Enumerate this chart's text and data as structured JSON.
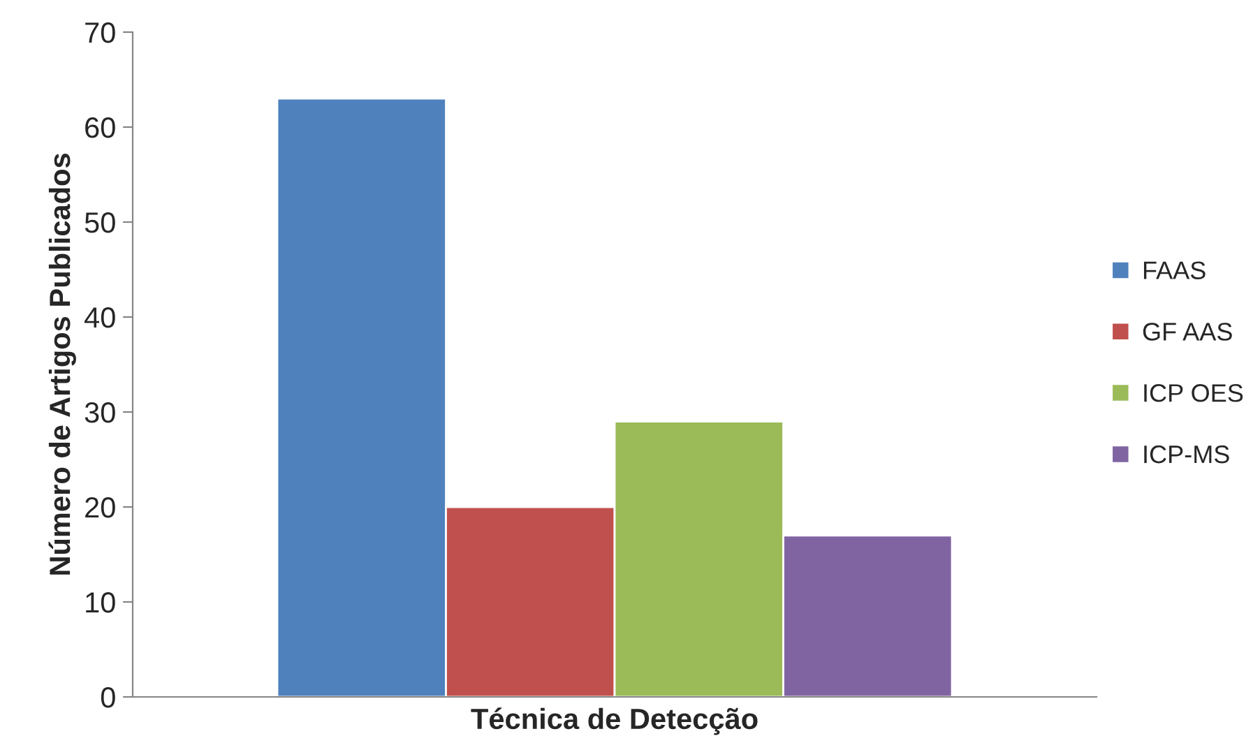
{
  "chart_data": {
    "type": "bar",
    "xlabel": "Técnica de Detecção",
    "ylabel": "Número de Artigos Publicados",
    "categories": [
      null
    ],
    "series": [
      {
        "name": "FAAS",
        "color": "#4f81bd",
        "values": [
          63
        ]
      },
      {
        "name": "GF AAS",
        "color": "#c0504d",
        "values": [
          20
        ]
      },
      {
        "name": "ICP OES",
        "color": "#9bbb59",
        "values": [
          29
        ]
      },
      {
        "name": "ICP-MS",
        "color": "#8064a2",
        "values": [
          17
        ]
      }
    ],
    "ylim": [
      0,
      70
    ],
    "yticks": [
      0,
      10,
      20,
      30,
      40,
      50,
      60,
      70
    ],
    "grid": false,
    "legend": "right"
  }
}
